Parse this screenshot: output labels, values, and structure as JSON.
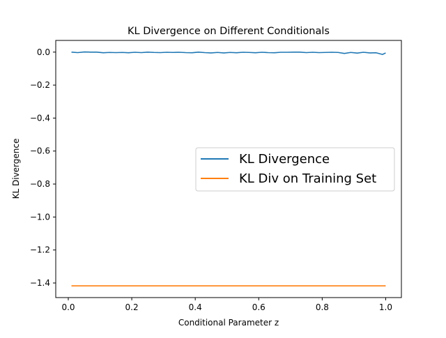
{
  "chart_data": {
    "type": "line",
    "title": "KL Divergence on Different Conditionals",
    "xlabel": "Conditional Parameter z",
    "ylabel": "KL Divergence",
    "xlim": [
      -0.0395,
      1.0495
    ],
    "ylim": [
      -1.4886,
      0.0709
    ],
    "xticks": [
      0.0,
      0.2,
      0.4,
      0.6,
      0.8,
      1.0
    ],
    "xtick_labels": [
      "0.0",
      "0.2",
      "0.4",
      "0.6",
      "0.8",
      "1.0"
    ],
    "yticks": [
      0.0,
      -0.2,
      -0.4,
      -0.6,
      -0.8,
      -1.0,
      -1.2,
      -1.4
    ],
    "ytick_labels": [
      "0.0",
      "−0.2",
      "−0.4",
      "−0.6",
      "−0.8",
      "−1.0",
      "−1.2",
      "−1.4"
    ],
    "grid": false,
    "legend_position": "center-right",
    "series": [
      {
        "name": "KL Divergence",
        "color": "#1f77b4",
        "x": [
          0.01,
          0.03,
          0.05,
          0.07,
          0.09,
          0.11,
          0.13,
          0.15,
          0.17,
          0.19,
          0.21,
          0.23,
          0.25,
          0.27,
          0.29,
          0.31,
          0.33,
          0.35,
          0.37,
          0.39,
          0.41,
          0.43,
          0.45,
          0.47,
          0.49,
          0.51,
          0.53,
          0.55,
          0.57,
          0.59,
          0.61,
          0.63,
          0.65,
          0.67,
          0.69,
          0.71,
          0.73,
          0.75,
          0.77,
          0.79,
          0.81,
          0.83,
          0.85,
          0.87,
          0.89,
          0.91,
          0.93,
          0.95,
          0.97,
          0.99,
          1.0
        ],
        "y": [
          0.0,
          -0.003,
          0.001,
          0.0,
          0.0,
          -0.004,
          -0.002,
          -0.003,
          -0.002,
          -0.004,
          -0.001,
          -0.003,
          0.0,
          -0.002,
          -0.003,
          -0.001,
          -0.002,
          -0.001,
          -0.003,
          -0.004,
          0.0,
          -0.003,
          -0.005,
          -0.002,
          -0.005,
          -0.002,
          -0.004,
          -0.001,
          -0.002,
          -0.004,
          -0.001,
          -0.003,
          -0.004,
          -0.001,
          -0.001,
          0.0,
          0.0,
          -0.003,
          -0.001,
          -0.003,
          -0.002,
          -0.001,
          -0.002,
          -0.008,
          -0.002,
          -0.006,
          -0.001,
          -0.005,
          -0.004,
          -0.014,
          -0.005
        ]
      },
      {
        "name": "KL Div on Training Set",
        "color": "#ff7f0e",
        "x": [
          0.01,
          1.0
        ],
        "y": [
          -1.4175,
          -1.4175
        ]
      }
    ]
  }
}
